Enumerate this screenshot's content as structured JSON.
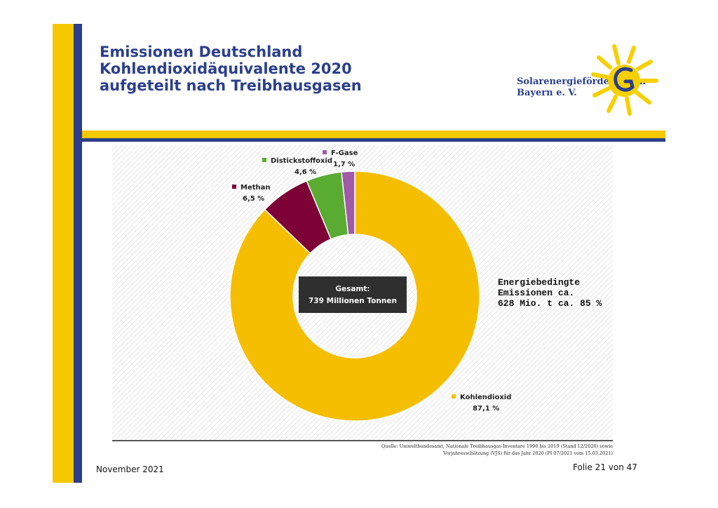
{
  "slide": {
    "title_lines": [
      "Emissionen Deutschland",
      "Kohlendioxidäquivalente 2020",
      "aufgeteilt nach Treibhausgasen"
    ],
    "logo_lines": [
      "Solarenergieförderverein",
      "Bayern e. V."
    ],
    "energy_note_lines": [
      "Energiebedingte",
      "Emissionen ca.",
      "628  Mio. t ca. 85 %"
    ],
    "footer_date": "November 2021",
    "footer_page": "Folie 21 von 47",
    "source_lines": [
      "Quelle: Umweltbundesamt, Nationale Treibhausgas-Inventare 1990 bis 2019 (Stand 12/2020) sowie",
      "Vorjahresschätzung (VJS) für das Jahr 2020 (PI 07/2021 vom 15.03.2021)"
    ],
    "colors": {
      "brand_blue": "#2b3f8c",
      "brand_yellow": "#f6c800"
    }
  },
  "chart_data": {
    "type": "pie",
    "style": "donut",
    "center_label_lines": [
      "Gesamt:",
      "739 Millionen Tonnen"
    ],
    "slices": [
      {
        "name": "Kohlendioxid",
        "value": 87.1,
        "label": "87,1 %",
        "color": "#f6be00"
      },
      {
        "name": "Methan",
        "value": 6.5,
        "label": "6,5 %",
        "color": "#7d0036"
      },
      {
        "name": "Distickstoffoxid",
        "value": 4.6,
        "label": "4,6 %",
        "color": "#5aab32"
      },
      {
        "name": "F-Gase",
        "value": 1.7,
        "label": "1,7 %",
        "color": "#a05aa8"
      }
    ]
  }
}
